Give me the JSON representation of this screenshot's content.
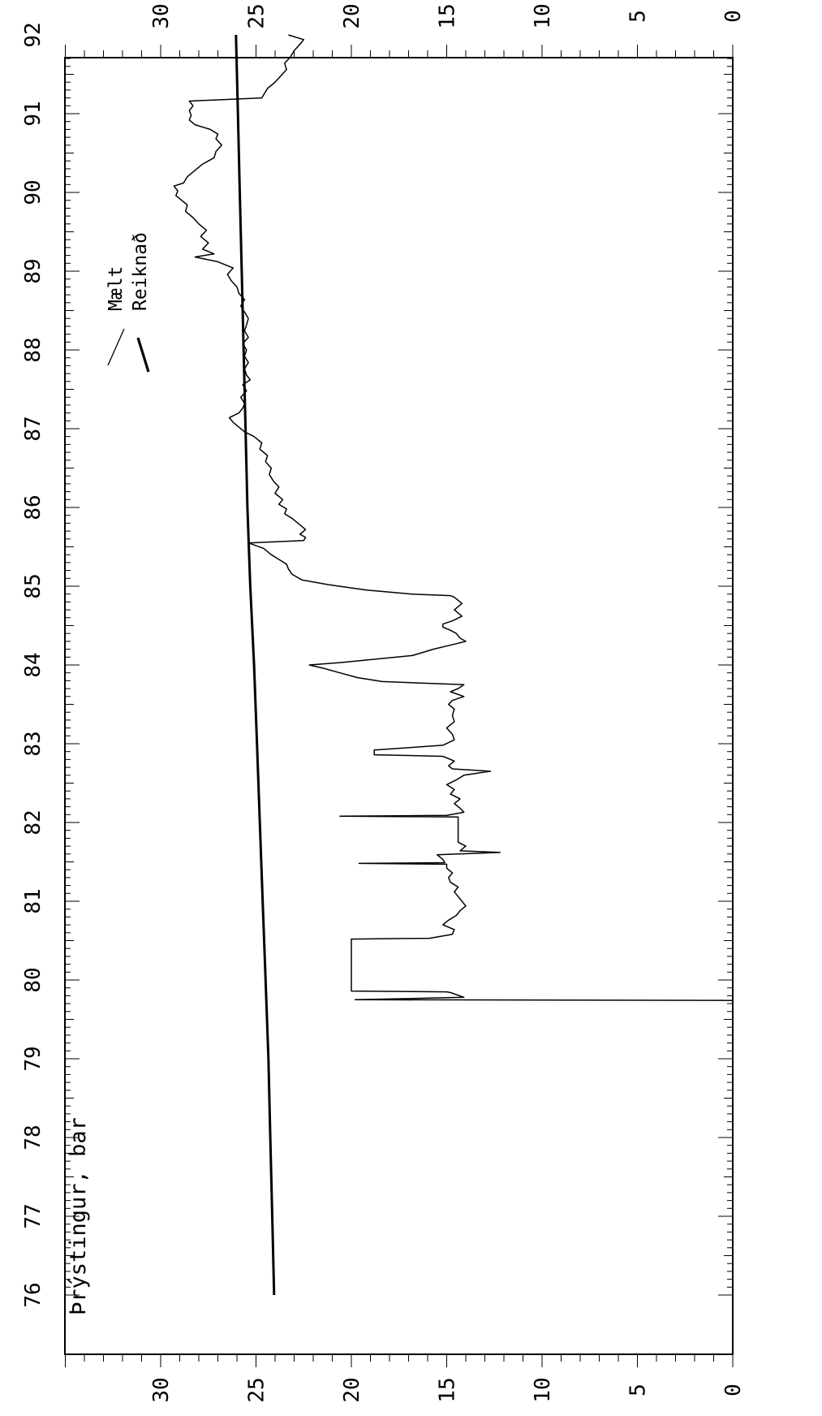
{
  "chart_data": {
    "type": "line",
    "title": "Þrýstingur, bar",
    "xlabel": "",
    "ylabel": "",
    "xlim": [
      76,
      92
    ],
    "ylim": [
      0,
      35
    ],
    "grid": false,
    "x_ticks": [
      "76",
      "77",
      "78",
      "79",
      "80",
      "81",
      "82",
      "83",
      "84",
      "85",
      "86",
      "87",
      "88",
      "89",
      "90",
      "91",
      "92"
    ],
    "y_ticks_left": [
      "0",
      "5",
      "10",
      "15",
      "20",
      "25",
      "30"
    ],
    "y_ticks_right": [
      "0",
      "5",
      "10",
      "15",
      "20",
      "25",
      "30"
    ],
    "legend_position": "top-right",
    "series": [
      {
        "name": "Mælt",
        "stroke": "#000000",
        "points": [
          [
            79.74,
            0
          ],
          [
            79.75,
            19.8
          ],
          [
            79.78,
            14.1
          ],
          [
            79.84,
            14.8
          ],
          [
            79.85,
            15.0
          ],
          [
            79.86,
            20.0
          ],
          [
            80.52,
            20.0
          ],
          [
            80.53,
            15.9
          ],
          [
            80.58,
            14.7
          ],
          [
            80.64,
            14.6
          ],
          [
            80.7,
            15.2
          ],
          [
            80.76,
            14.9
          ],
          [
            80.82,
            14.5
          ],
          [
            80.88,
            14.3
          ],
          [
            80.94,
            14.0
          ],
          [
            81.0,
            14.2
          ],
          [
            81.06,
            14.4
          ],
          [
            81.12,
            14.6
          ],
          [
            81.18,
            14.4
          ],
          [
            81.24,
            14.8
          ],
          [
            81.3,
            14.9
          ],
          [
            81.36,
            14.7
          ],
          [
            81.42,
            15.0
          ],
          [
            81.47,
            15.0
          ],
          [
            81.48,
            19.6
          ],
          [
            81.49,
            15.1
          ],
          [
            81.53,
            15.2
          ],
          [
            81.59,
            15.5
          ],
          [
            81.62,
            12.2
          ],
          [
            81.64,
            14.3
          ],
          [
            81.7,
            14.0
          ],
          [
            81.75,
            14.4
          ],
          [
            82.07,
            14.4
          ],
          [
            82.08,
            20.6
          ],
          [
            82.09,
            15.0
          ],
          [
            82.13,
            14.1
          ],
          [
            82.18,
            14.3
          ],
          [
            82.24,
            14.6
          ],
          [
            82.3,
            14.3
          ],
          [
            82.36,
            14.8
          ],
          [
            82.42,
            14.6
          ],
          [
            82.48,
            15.0
          ],
          [
            82.54,
            14.5
          ],
          [
            82.6,
            14.1
          ],
          [
            82.65,
            12.7
          ],
          [
            82.68,
            14.7
          ],
          [
            82.72,
            14.9
          ],
          [
            82.78,
            14.6
          ],
          [
            82.84,
            15.2
          ],
          [
            82.86,
            18.8
          ],
          [
            82.92,
            18.8
          ],
          [
            82.98,
            15.2
          ],
          [
            83.05,
            14.6
          ],
          [
            83.12,
            14.7
          ],
          [
            83.2,
            15.0
          ],
          [
            83.28,
            14.6
          ],
          [
            83.36,
            14.7
          ],
          [
            83.44,
            14.6
          ],
          [
            83.5,
            14.9
          ],
          [
            83.55,
            14.7
          ],
          [
            83.6,
            14.1
          ],
          [
            83.66,
            14.8
          ],
          [
            83.7,
            14.4
          ],
          [
            83.75,
            14.1
          ],
          [
            83.79,
            18.4
          ],
          [
            83.84,
            19.7
          ],
          [
            83.9,
            20.6
          ],
          [
            83.96,
            21.5
          ],
          [
            84.0,
            22.2
          ],
          [
            84.03,
            20.6
          ],
          [
            84.12,
            16.8
          ],
          [
            84.2,
            15.7
          ],
          [
            84.27,
            14.5
          ],
          [
            84.3,
            14.0
          ],
          [
            84.34,
            14.3
          ],
          [
            84.4,
            14.5
          ],
          [
            84.44,
            14.8
          ],
          [
            84.48,
            15.2
          ],
          [
            84.52,
            15.2
          ],
          [
            84.56,
            14.7
          ],
          [
            84.62,
            14.2
          ],
          [
            84.7,
            14.6
          ],
          [
            84.78,
            14.2
          ],
          [
            84.86,
            14.6
          ],
          [
            84.88,
            14.8
          ],
          [
            84.9,
            16.8
          ],
          [
            84.95,
            19.2
          ],
          [
            85.02,
            21.2
          ],
          [
            85.08,
            22.6
          ],
          [
            85.15,
            23.1
          ],
          [
            85.22,
            23.3
          ],
          [
            85.28,
            23.4
          ],
          [
            85.34,
            23.8
          ],
          [
            85.4,
            24.2
          ],
          [
            85.48,
            24.6
          ],
          [
            85.55,
            25.4
          ],
          [
            85.58,
            22.5
          ],
          [
            85.62,
            22.4
          ],
          [
            85.66,
            22.7
          ],
          [
            85.72,
            22.4
          ],
          [
            85.8,
            22.8
          ],
          [
            85.86,
            23.1
          ],
          [
            85.92,
            23.5
          ],
          [
            85.98,
            23.4
          ],
          [
            86.04,
            23.8
          ],
          [
            86.1,
            23.6
          ],
          [
            86.18,
            24.0
          ],
          [
            86.26,
            23.8
          ],
          [
            86.34,
            24.1
          ],
          [
            86.42,
            24.3
          ],
          [
            86.5,
            24.2
          ],
          [
            86.58,
            24.5
          ],
          [
            86.66,
            24.4
          ],
          [
            86.74,
            24.8
          ],
          [
            86.82,
            24.7
          ],
          [
            86.9,
            25.1
          ],
          [
            86.96,
            25.6
          ],
          [
            87.02,
            25.9
          ],
          [
            87.08,
            26.2
          ],
          [
            87.14,
            26.4
          ],
          [
            87.2,
            25.9
          ],
          [
            87.26,
            25.7
          ],
          [
            87.32,
            25.6
          ],
          [
            87.4,
            25.8
          ],
          [
            87.48,
            25.5
          ],
          [
            87.56,
            25.7
          ],
          [
            87.62,
            25.3
          ],
          [
            87.68,
            25.5
          ],
          [
            87.76,
            25.6
          ],
          [
            87.84,
            25.4
          ],
          [
            87.92,
            25.6
          ],
          [
            88.0,
            25.5
          ],
          [
            88.08,
            25.7
          ],
          [
            88.16,
            25.4
          ],
          [
            88.24,
            25.6
          ],
          [
            88.32,
            25.5
          ],
          [
            88.4,
            25.4
          ],
          [
            88.48,
            25.6
          ],
          [
            88.56,
            25.8
          ],
          [
            88.64,
            25.6
          ],
          [
            88.72,
            25.9
          ],
          [
            88.8,
            26.0
          ],
          [
            88.88,
            26.3
          ],
          [
            88.96,
            26.5
          ],
          [
            89.04,
            26.2
          ],
          [
            89.12,
            27.0
          ],
          [
            89.18,
            28.2
          ],
          [
            89.22,
            27.2
          ],
          [
            89.28,
            27.8
          ],
          [
            89.36,
            27.5
          ],
          [
            89.44,
            27.9
          ],
          [
            89.52,
            27.6
          ],
          [
            89.6,
            28.0
          ],
          [
            89.68,
            28.3
          ],
          [
            89.76,
            28.7
          ],
          [
            89.84,
            28.6
          ],
          [
            89.9,
            28.9
          ],
          [
            89.96,
            29.2
          ],
          [
            90.02,
            29.1
          ],
          [
            90.08,
            29.3
          ],
          [
            90.12,
            28.8
          ],
          [
            90.2,
            28.6
          ],
          [
            90.28,
            28.2
          ],
          [
            90.36,
            27.8
          ],
          [
            90.44,
            27.2
          ],
          [
            90.52,
            27.1
          ],
          [
            90.6,
            26.8
          ],
          [
            90.68,
            27.1
          ],
          [
            90.74,
            27.0
          ],
          [
            90.8,
            27.4
          ],
          [
            90.86,
            28.2
          ],
          [
            90.92,
            28.5
          ],
          [
            90.98,
            28.4
          ],
          [
            91.04,
            28.5
          ],
          [
            91.1,
            28.3
          ],
          [
            91.16,
            28.5
          ],
          [
            91.2,
            24.7
          ],
          [
            91.24,
            24.6
          ],
          [
            91.32,
            24.4
          ],
          [
            91.4,
            24.0
          ],
          [
            91.48,
            23.7
          ],
          [
            91.56,
            23.4
          ],
          [
            91.64,
            23.5
          ],
          [
            91.72,
            23.2
          ],
          [
            91.8,
            23.0
          ],
          [
            91.88,
            22.7
          ],
          [
            91.94,
            22.5
          ],
          [
            92.0,
            23.3
          ]
        ]
      },
      {
        "name": "Reiknað",
        "stroke": "#000000",
        "points": [
          [
            76.0,
            24.05
          ],
          [
            77.0,
            24.15
          ],
          [
            78.0,
            24.25
          ],
          [
            79.0,
            24.35
          ],
          [
            80.0,
            24.5
          ],
          [
            81.0,
            24.65
          ],
          [
            82.0,
            24.8
          ],
          [
            83.0,
            24.95
          ],
          [
            84.0,
            25.1
          ],
          [
            85.0,
            25.3
          ],
          [
            86.0,
            25.45
          ],
          [
            87.0,
            25.55
          ],
          [
            88.0,
            25.65
          ],
          [
            89.0,
            25.75
          ],
          [
            90.0,
            25.85
          ],
          [
            91.0,
            25.95
          ],
          [
            92.0,
            26.05
          ]
        ]
      }
    ]
  }
}
